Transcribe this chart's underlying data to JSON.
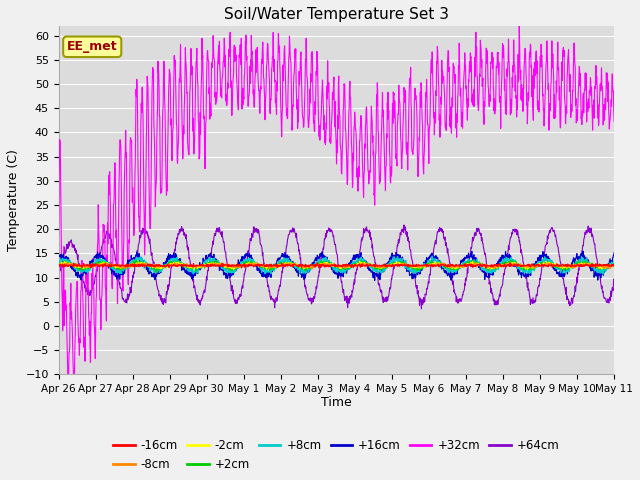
{
  "title": "Soil/Water Temperature Set 3",
  "ylabel": "Temperature (C)",
  "xlabel": "Time",
  "ylim": [
    -10,
    62
  ],
  "yticks": [
    -10,
    -5,
    0,
    5,
    10,
    15,
    20,
    25,
    30,
    35,
    40,
    45,
    50,
    55,
    60
  ],
  "xtick_labels": [
    "Apr 26",
    "Apr 27",
    "Apr 28",
    "Apr 29",
    "Apr 30",
    "May 1",
    "May 2",
    "May 3",
    "May 4",
    "May 5",
    "May 6",
    "May 7",
    "May 8",
    "May 9",
    "May 10",
    "May 11"
  ],
  "series_colors": {
    "-16cm": "#ff0000",
    "-8cm": "#ff8800",
    "-2cm": "#ffff00",
    "+2cm": "#00cc00",
    "+8cm": "#00cccc",
    "+16cm": "#0000cc",
    "+32cm": "#ff00ff",
    "+64cm": "#8800cc"
  },
  "annotation_text": "EE_met",
  "annotation_box_facecolor": "#ffff99",
  "annotation_box_edgecolor": "#999900",
  "annotation_text_color": "#990000",
  "background_color": "#dcdcdc",
  "figure_facecolor": "#f0f0f0",
  "grid_color": "#ffffff",
  "figwidth": 6.4,
  "figheight": 4.8,
  "dpi": 100
}
